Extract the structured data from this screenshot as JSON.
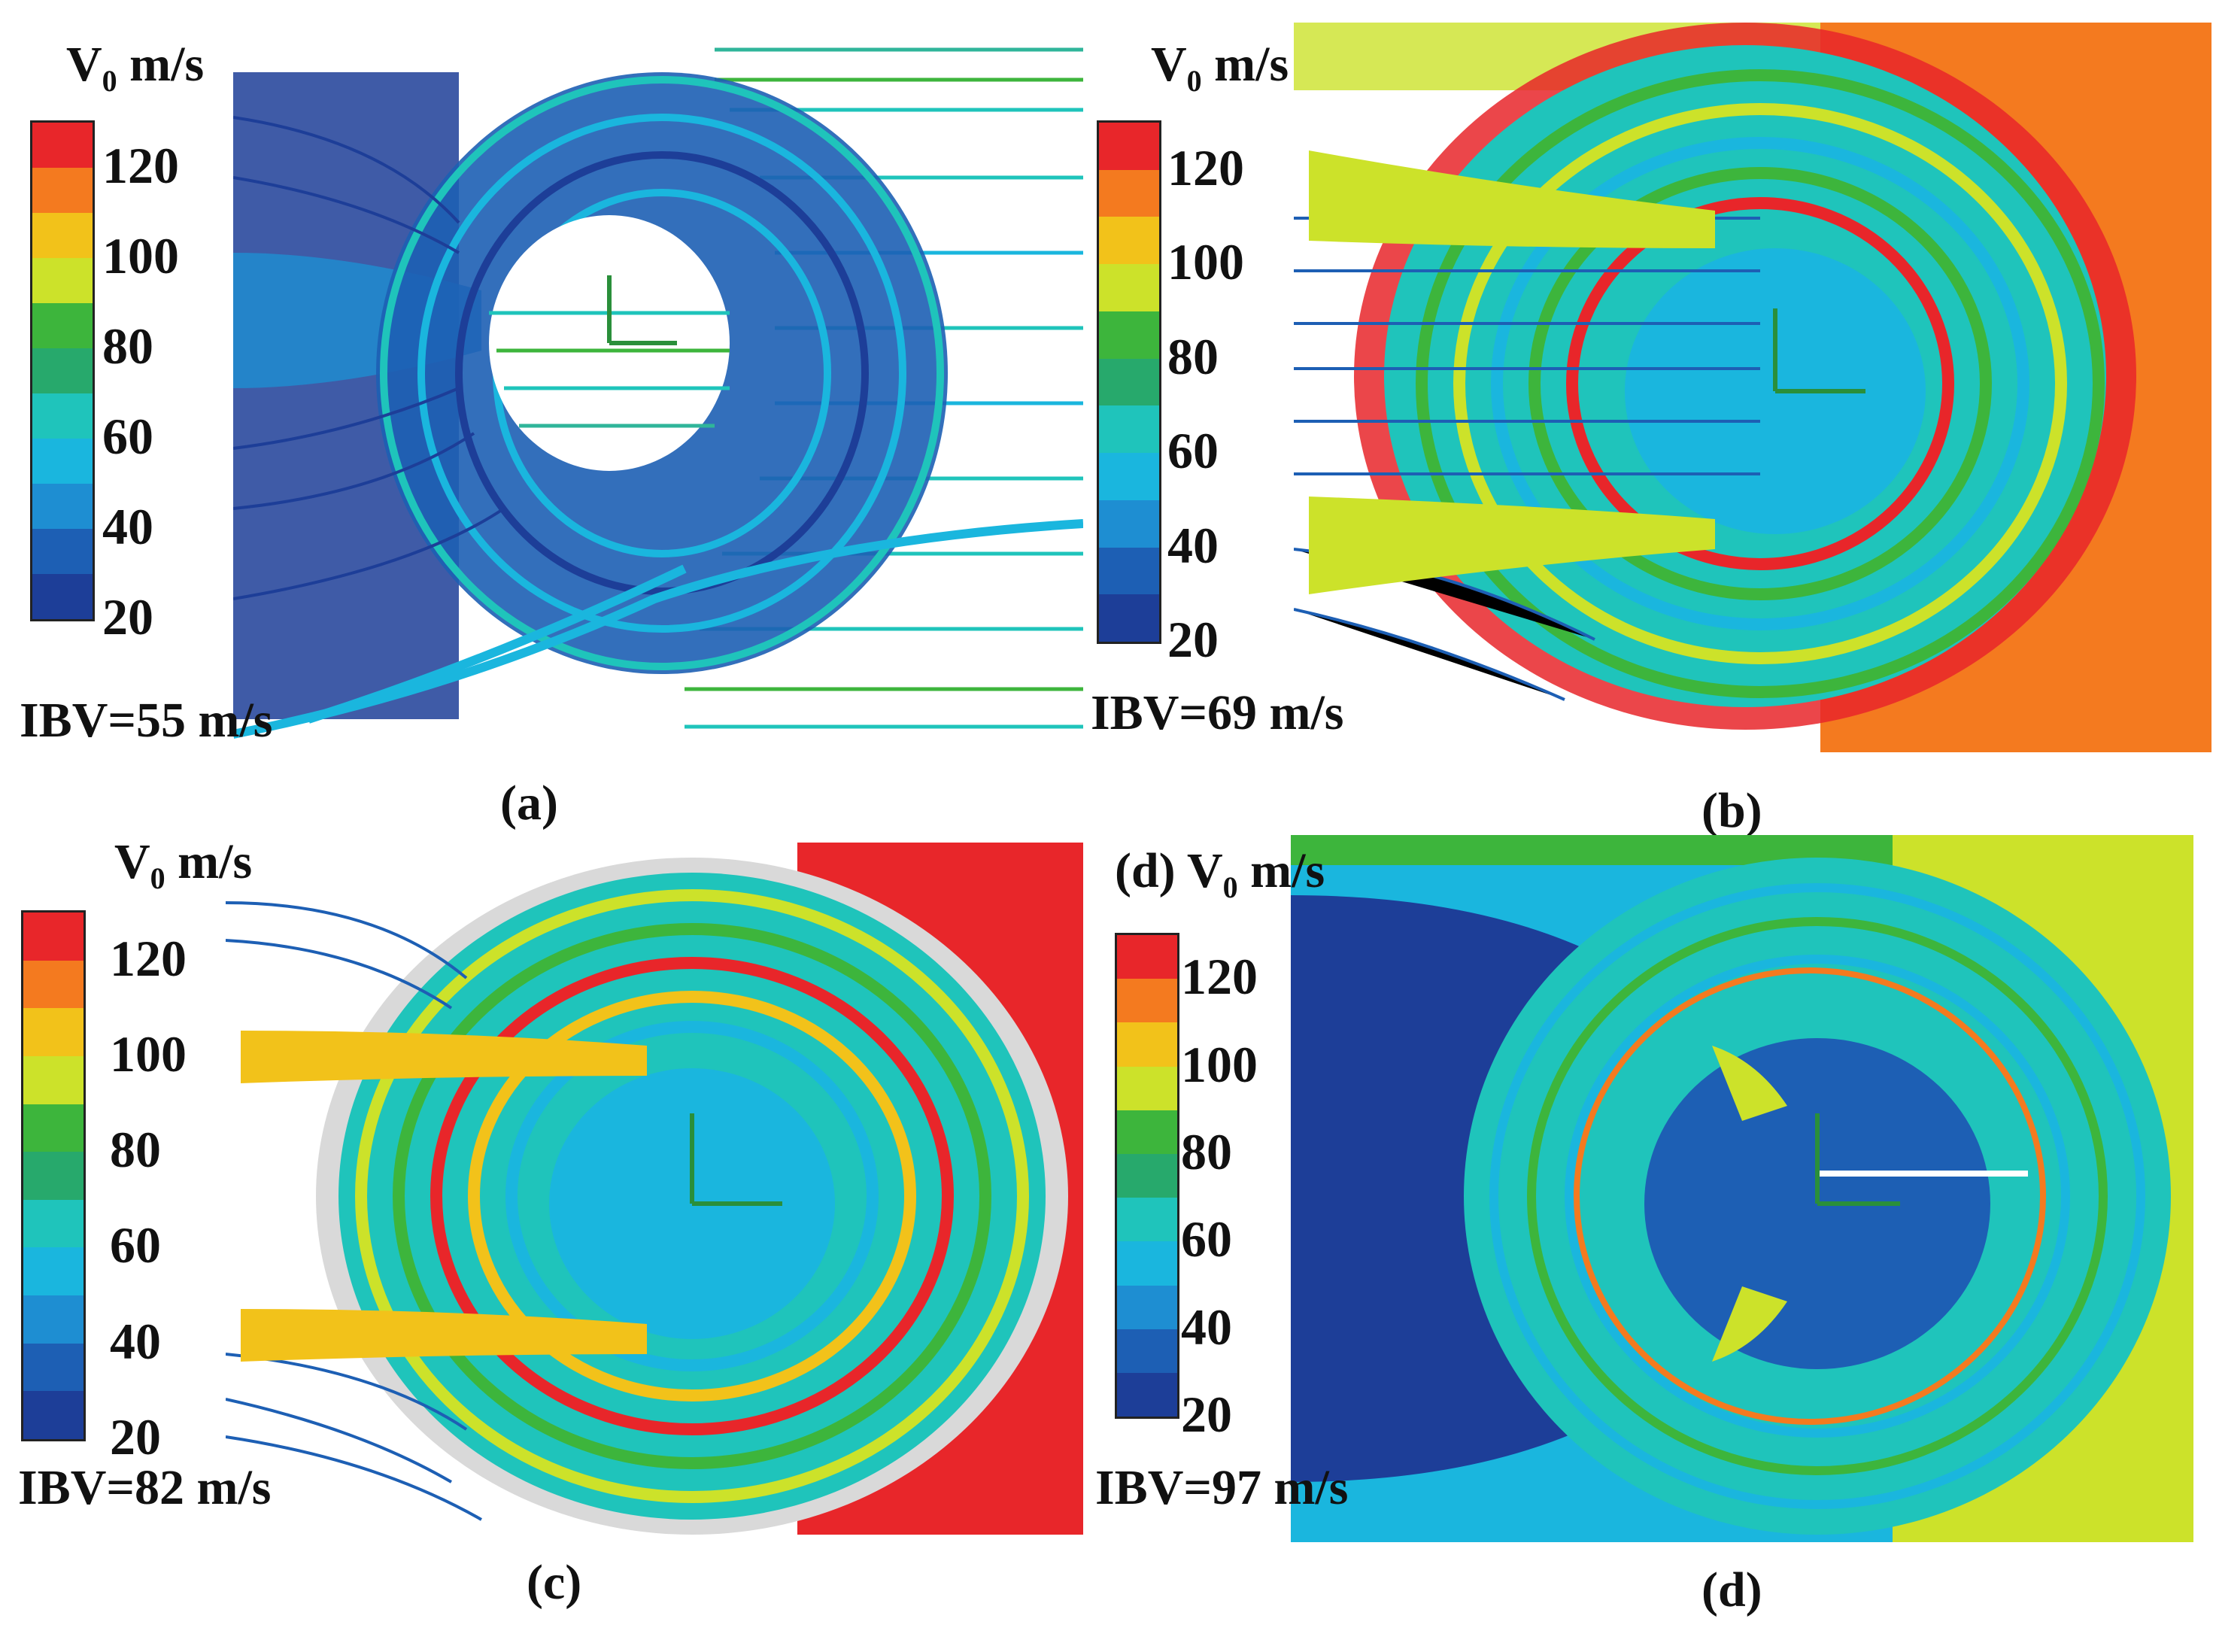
{
  "colorbar": {
    "title_main": "V",
    "title_sub": "0",
    "title_unit": " m/s",
    "ticks": [
      "120",
      "100",
      "80",
      "60",
      "40",
      "20"
    ],
    "colors": [
      "#e8262a",
      "#f47a1f",
      "#f2c21a",
      "#cce22a",
      "#3db53c",
      "#27a96c",
      "#1fc4bb",
      "#1ab6de",
      "#1e8ed2",
      "#1d5fb4",
      "#1d3e98"
    ]
  },
  "panels": [
    {
      "id": "a",
      "ibv": "IBV=55 m/s",
      "caption": "(a)",
      "prefix": ""
    },
    {
      "id": "b",
      "ibv": "IBV=69 m/s",
      "caption": "(b)",
      "prefix": ""
    },
    {
      "id": "c",
      "ibv": "IBV=82 m/s",
      "caption": "(c)",
      "prefix": ""
    },
    {
      "id": "d",
      "ibv": "IBV=97 m/s",
      "caption": "(d)",
      "prefix": "(d) "
    }
  ]
}
